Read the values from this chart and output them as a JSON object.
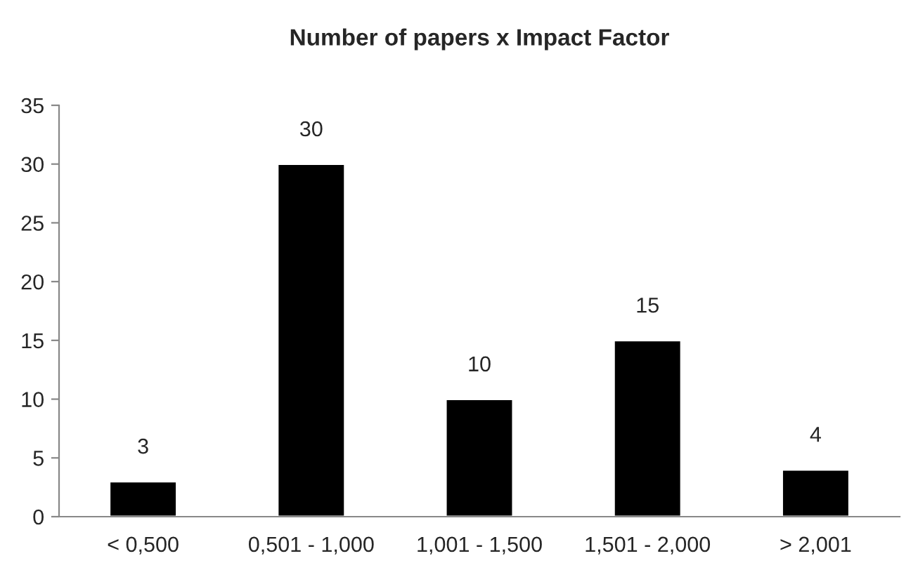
{
  "chart_data": {
    "type": "bar",
    "title": "Number of papers x Impact Factor",
    "categories": [
      "< 0,500",
      "0,501 - 1,000",
      "1,001 - 1,500",
      "1,501 - 2,000",
      "> 2,001"
    ],
    "values": [
      3,
      30,
      10,
      15,
      4
    ],
    "color": "#000000",
    "ylim": [
      0,
      35
    ],
    "yticks": [
      0,
      5,
      10,
      15,
      20,
      25,
      30,
      35
    ],
    "grid": false,
    "data_labels": true
  }
}
